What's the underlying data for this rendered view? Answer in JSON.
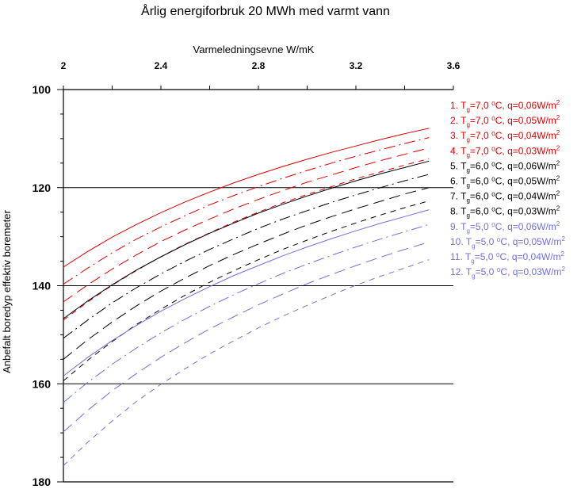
{
  "chart_data": {
    "type": "line",
    "title": "Årlig energiforbruk 20 MWh med varmt vann",
    "xlabel": "Varmeledningsevne W/mK",
    "ylabel": "Anbefalt boredyp effektiv boremeter",
    "x_axis_position": "top",
    "y_axis_inverted": true,
    "xlim": [
      2,
      3.6
    ],
    "ylim": [
      100,
      180
    ],
    "xticks": [
      "2",
      "2.4",
      "2.8",
      "3.2",
      "3.6"
    ],
    "yticks": [
      "100",
      "120",
      "140",
      "160",
      "180"
    ],
    "grid_y": [
      120,
      140,
      160
    ],
    "x": [
      2.0,
      2.1,
      2.2,
      2.3,
      2.4,
      2.5,
      2.6,
      2.7,
      2.8,
      2.9,
      3.0,
      3.1,
      3.2,
      3.3,
      3.4,
      3.5
    ],
    "series": [
      {
        "name_parts": [
          "1. T",
          "g",
          "=7,0 ⁰C, q=0,06W/m",
          "2"
        ],
        "color": "#e00000",
        "dash": "solid",
        "values": [
          136.2,
          133.0,
          130.1,
          127.5,
          125.1,
          122.9,
          120.9,
          119.0,
          117.3,
          115.7,
          114.2,
          112.8,
          111.5,
          110.2,
          109.0,
          107.9
        ]
      },
      {
        "name_parts": [
          "2. T",
          "g",
          "=7,0 ⁰C, q=0,05W/m",
          "2"
        ],
        "color": "#e00000",
        "dash": "dashdot",
        "values": [
          139.7,
          136.4,
          133.3,
          130.5,
          128.0,
          125.7,
          123.5,
          121.6,
          119.8,
          118.1,
          116.5,
          115.0,
          113.6,
          112.3,
          111.0,
          109.8
        ]
      },
      {
        "name_parts": [
          "3. T",
          "g",
          "=7,0 ⁰C, q=0,04W/m",
          "2"
        ],
        "color": "#e00000",
        "dash": "longdash",
        "values": [
          143.3,
          139.8,
          136.6,
          133.7,
          131.0,
          128.6,
          126.4,
          124.3,
          122.4,
          120.6,
          118.9,
          117.4,
          115.9,
          114.5,
          113.2,
          111.9
        ]
      },
      {
        "name_parts": [
          "4. T",
          "g",
          "=7,0 ⁰C, q=0,03W/m",
          "2"
        ],
        "color": "#e00000",
        "dash": "shortdash",
        "values": [
          147.0,
          143.3,
          139.9,
          136.9,
          134.1,
          131.5,
          129.2,
          127.0,
          125.0,
          123.1,
          121.4,
          119.8,
          118.2,
          116.8,
          115.4,
          114.1
        ]
      },
      {
        "name_parts": [
          "5. T",
          "g",
          "=6,0 ⁰C, q=0,06W/m",
          "2"
        ],
        "color": "#000000",
        "dash": "solid",
        "values": [
          146.7,
          143.1,
          139.8,
          136.8,
          134.1,
          131.6,
          129.3,
          127.2,
          125.2,
          123.4,
          121.7,
          120.1,
          118.6,
          117.2,
          115.9,
          114.6
        ]
      },
      {
        "name_parts": [
          "6. T",
          "g",
          "=6,0 ⁰C, q=0,05W/m",
          "2"
        ],
        "color": "#000000",
        "dash": "dashdot",
        "values": [
          150.7,
          147.0,
          143.5,
          140.4,
          137.6,
          135.0,
          132.6,
          130.4,
          128.3,
          126.4,
          124.7,
          123.0,
          121.5,
          120.0,
          118.6,
          117.3
        ]
      },
      {
        "name_parts": [
          "7. T",
          "g",
          "=6,0 ⁰C, q=0,04W/m",
          "2"
        ],
        "color": "#000000",
        "dash": "longdash",
        "values": [
          155.0,
          151.0,
          147.4,
          144.1,
          141.1,
          138.4,
          135.9,
          133.6,
          131.5,
          129.5,
          127.6,
          125.9,
          124.3,
          122.8,
          121.3,
          120.0
        ]
      },
      {
        "name_parts": [
          "8. T",
          "g",
          "=6,0 ⁰C, q=0,03W/m",
          "2"
        ],
        "color": "#000000",
        "dash": "shortdash",
        "values": [
          159.4,
          155.2,
          151.4,
          147.9,
          144.8,
          141.9,
          139.3,
          136.9,
          134.7,
          132.6,
          130.7,
          128.9,
          127.2,
          125.6,
          124.1,
          122.7
        ]
      },
      {
        "name_parts": [
          "9.   T",
          "g",
          "=5,0 ⁰C, q=0,06W/m",
          "2"
        ],
        "color": "#7070e0",
        "dash": "solid",
        "values": [
          158.4,
          154.6,
          151.2,
          148.1,
          145.2,
          142.6,
          140.2,
          137.9,
          135.9,
          133.9,
          132.1,
          130.4,
          128.8,
          127.3,
          125.9,
          124.5
        ]
      },
      {
        "name_parts": [
          "10.  T",
          "g",
          "=5,0 ⁰C, q=0,05W/m",
          "2"
        ],
        "color": "#7070e0",
        "dash": "dashdot",
        "values": [
          163.8,
          159.7,
          156.0,
          152.7,
          149.6,
          146.8,
          144.2,
          141.8,
          139.6,
          137.5,
          135.6,
          133.8,
          132.1,
          130.5,
          129.0,
          127.5
        ]
      },
      {
        "name_parts": [
          "11.  T",
          "g",
          "=5,0 ⁰C, q=0,04W/m",
          "2"
        ],
        "color": "#7070e0",
        "dash": "longdash",
        "values": [
          169.8,
          165.4,
          161.4,
          157.9,
          154.6,
          151.6,
          148.8,
          146.3,
          143.9,
          141.7,
          139.6,
          137.7,
          135.9,
          134.2,
          132.6,
          131.1
        ]
      },
      {
        "name_parts": [
          "12.  T",
          "g",
          "=5,0 ⁰C, q=0,03W/m",
          "2"
        ],
        "color": "#7070e0",
        "dash": "shortdash",
        "values": [
          176.7,
          171.9,
          167.6,
          163.6,
          160.1,
          156.9,
          153.9,
          151.2,
          148.6,
          146.2,
          144.0,
          141.9,
          139.9,
          138.1,
          136.4,
          134.7
        ]
      }
    ]
  }
}
